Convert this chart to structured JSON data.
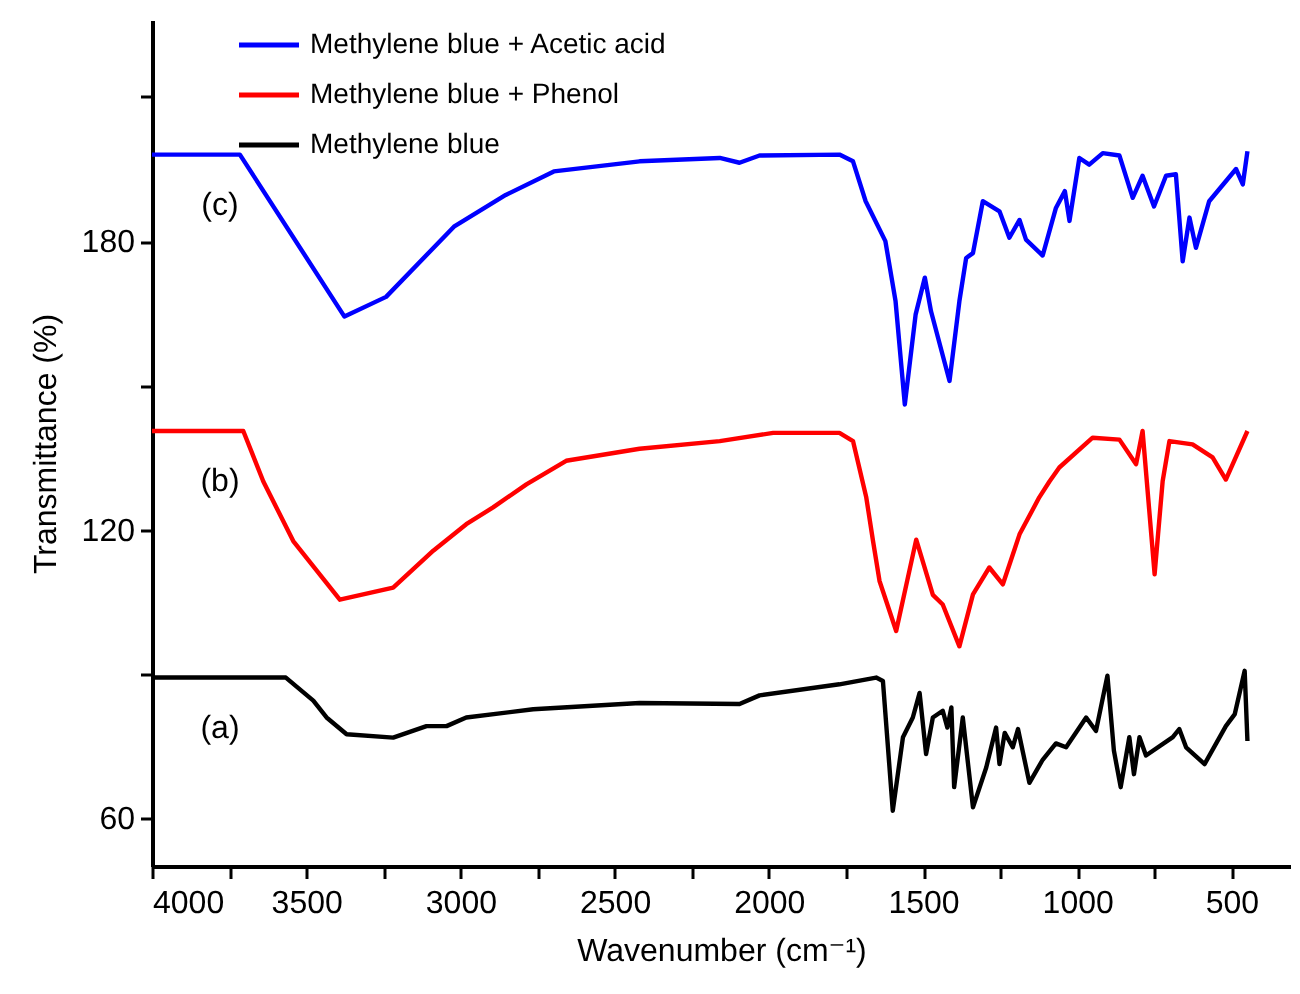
{
  "chart_data": {
    "type": "line",
    "xlabel": "Wavenumber (cm⁻¹)",
    "ylabel": "Transmittance (%)",
    "xlim": [
      4000,
      310
    ],
    "ylim": [
      50,
      226
    ],
    "xticks": [
      4000,
      {
        "value": 3750,
        "label": null
      },
      3500,
      {
        "value": 3250,
        "label": null
      },
      3000,
      {
        "value": 2750,
        "label": null
      },
      2500,
      {
        "value": 2250,
        "label": null
      },
      2000,
      {
        "value": 1750,
        "label": null
      },
      1500,
      {
        "value": 1250,
        "label": null
      },
      1000,
      {
        "value": 750,
        "label": null
      },
      500
    ],
    "yticks": [
      60,
      {
        "value": 90,
        "label": null
      },
      120,
      {
        "value": 150,
        "label": null
      },
      180,
      {
        "value": 210,
        "label": null
      }
    ],
    "grid": false,
    "legend": "top",
    "marker": "none",
    "line_style": "solid",
    "annotations": [
      "(c)",
      "(b)",
      "(a)"
    ],
    "series": [
      {
        "name": "Methylene blue + Acetic acid",
        "color": "#0000ff",
        "x": [
          4000,
          3715,
          3376,
          3241,
          3021,
          2853,
          2697,
          2419,
          2159,
          2095,
          2030,
          1771,
          1727,
          1686,
          1622,
          1589,
          1559,
          1524,
          1494,
          1474,
          1414,
          1382,
          1360,
          1338,
          1306,
          1252,
          1220,
          1187,
          1166,
          1112,
          1069,
          1040,
          1025,
          993,
          961,
          917,
          863,
          820,
          788,
          751,
          712,
          680,
          658,
          636,
          615,
          572,
          485,
          463,
          448
        ],
        "values": [
          198,
          198,
          164.3,
          168.4,
          183,
          189.6,
          194.5,
          196.6,
          197.3,
          196.3,
          197.8,
          198,
          196.6,
          188.3,
          180,
          167.5,
          146,
          164.7,
          172.4,
          165.4,
          150.9,
          167.5,
          176.5,
          177.5,
          188.3,
          186.2,
          180.7,
          184.4,
          180.3,
          177,
          186.9,
          190.4,
          184.2,
          197.3,
          195.9,
          198.3,
          197.8,
          189,
          193.6,
          187.2,
          193.6,
          193.9,
          175.8,
          184.9,
          178.6,
          188.3,
          195,
          191.8,
          198.7
        ]
      },
      {
        "name": "Methylene blue + Phenol",
        "color": "#ff0000",
        "x": [
          4000,
          3704,
          3639,
          3542,
          3391,
          3218,
          3088,
          2981,
          2894,
          2786,
          2657,
          2419,
          2159,
          1986,
          1771,
          1727,
          1684,
          1662,
          1641,
          1587,
          1522,
          1468,
          1436,
          1382,
          1338,
          1285,
          1241,
          1187,
          1123,
          1090,
          1058,
          950,
          863,
          809,
          788,
          749,
          723,
          701,
          626,
          561,
          518,
          448
        ],
        "values": [
          140.5,
          140.5,
          130,
          117.6,
          105.4,
          107.9,
          115.6,
          121.1,
          124.6,
          129.4,
          134.3,
          136.8,
          138.4,
          140.1,
          140.1,
          138.4,
          126.7,
          117.6,
          109.3,
          98.9,
          117.9,
          106.4,
          104.4,
          95.7,
          106.5,
          112.1,
          108.6,
          119,
          126.7,
          130,
          132.9,
          139.1,
          138.7,
          133.6,
          140.5,
          110.7,
          130,
          138.4,
          137.7,
          135,
          130.4,
          140.5
        ]
      },
      {
        "name": "Methylene blue",
        "color": "#000000",
        "x": [
          4000,
          3566,
          3477,
          3434,
          3369,
          3218,
          3110,
          3045,
          2981,
          2764,
          2419,
          2095,
          2030,
          1771,
          1652,
          1630,
          1598,
          1565,
          1533,
          1511,
          1490,
          1468,
          1436,
          1421,
          1408,
          1399,
          1371,
          1338,
          1295,
          1263,
          1252,
          1235,
          1209,
          1192,
          1155,
          1112,
          1069,
          1036,
          971,
          939,
          902,
          881,
          859,
          831,
          816,
          798,
          777,
          690,
          669,
          647,
          587,
          518,
          489,
          457,
          448
        ],
        "values": [
          89.2,
          89.2,
          84.4,
          80.9,
          77.4,
          76.7,
          79.1,
          79.1,
          80.9,
          82.6,
          83.9,
          83.7,
          85.5,
          87.8,
          89.2,
          88.5,
          61.5,
          76.8,
          80.9,
          86,
          73.3,
          80.9,
          82.3,
          78.8,
          83,
          66.4,
          80.9,
          62.2,
          70.5,
          78.8,
          71.2,
          77.7,
          74.7,
          78.5,
          67.3,
          72.1,
          75.5,
          74.7,
          80.9,
          78.1,
          89.6,
          74,
          66.4,
          76.8,
          69.1,
          76.8,
          73,
          76.8,
          78.5,
          74.7,
          71.2,
          79.1,
          81.6,
          90.6,
          76
        ]
      }
    ]
  }
}
